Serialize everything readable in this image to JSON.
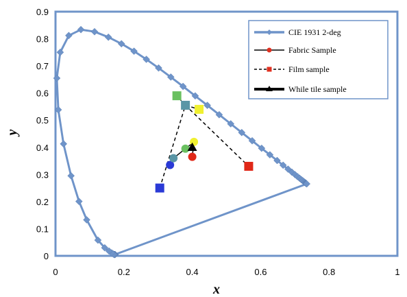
{
  "chart_data": {
    "type": "scatter",
    "xlabel": "x",
    "ylabel": "y",
    "xlim": [
      0,
      1
    ],
    "ylim": [
      0,
      0.9
    ],
    "x_ticks": [
      "0",
      "0.2",
      "0.4",
      "0.6",
      "0.8",
      "1"
    ],
    "y_ticks": [
      "0",
      "0.1",
      "0.2",
      "0.3",
      "0.4",
      "0.5",
      "0.6",
      "0.7",
      "0.8",
      "0.9"
    ],
    "grid": false,
    "legend_placement": "top-right",
    "legend": [
      {
        "label": "CIE 1931 2-deg",
        "style": "thick-line-diamond",
        "color": "#6f94c9"
      },
      {
        "label": "Fabric Sample",
        "style": "line-circle",
        "color": "#000000",
        "marker_color": "#e03020"
      },
      {
        "label": "Film sample",
        "style": "dashed-square",
        "color": "#000000",
        "marker_color": "#e03020"
      },
      {
        "label": "While tile sample",
        "style": "thick-line-triangle",
        "color": "#000000"
      }
    ],
    "series": [
      {
        "name": "CIE 1931 2-deg",
        "color": "#6f94c9",
        "closed": true,
        "points": [
          [
            0.1741,
            0.005
          ],
          [
            0.1738,
            0.0049
          ],
          [
            0.1733,
            0.0048
          ],
          [
            0.1726,
            0.0048
          ],
          [
            0.1714,
            0.0051
          ],
          [
            0.1689,
            0.0069
          ],
          [
            0.1644,
            0.0109
          ],
          [
            0.1566,
            0.0177
          ],
          [
            0.144,
            0.0297
          ],
          [
            0.1241,
            0.0578
          ],
          [
            0.0913,
            0.1327
          ],
          [
            0.0687,
            0.2007
          ],
          [
            0.0454,
            0.295
          ],
          [
            0.0235,
            0.4127
          ],
          [
            0.0082,
            0.5384
          ],
          [
            0.0039,
            0.6548
          ],
          [
            0.0139,
            0.7502
          ],
          [
            0.0389,
            0.812
          ],
          [
            0.0743,
            0.8338
          ],
          [
            0.1142,
            0.8262
          ],
          [
            0.1547,
            0.8059
          ],
          [
            0.1929,
            0.7816
          ],
          [
            0.2296,
            0.7543
          ],
          [
            0.2658,
            0.7243
          ],
          [
            0.3016,
            0.6923
          ],
          [
            0.3373,
            0.6589
          ],
          [
            0.3731,
            0.6245
          ],
          [
            0.4087,
            0.5896
          ],
          [
            0.4441,
            0.5547
          ],
          [
            0.4788,
            0.5202
          ],
          [
            0.5125,
            0.4866
          ],
          [
            0.5448,
            0.4544
          ],
          [
            0.5752,
            0.4242
          ],
          [
            0.6029,
            0.3965
          ],
          [
            0.627,
            0.3725
          ],
          [
            0.6482,
            0.3514
          ],
          [
            0.6658,
            0.334
          ],
          [
            0.6801,
            0.3197
          ],
          [
            0.6915,
            0.3083
          ],
          [
            0.7006,
            0.2993
          ],
          [
            0.7079,
            0.292
          ],
          [
            0.714,
            0.2859
          ],
          [
            0.719,
            0.2809
          ],
          [
            0.723,
            0.277
          ],
          [
            0.726,
            0.274
          ],
          [
            0.7283,
            0.2717
          ],
          [
            0.73,
            0.27
          ],
          [
            0.7311,
            0.2689
          ],
          [
            0.732,
            0.268
          ],
          [
            0.7327,
            0.2673
          ],
          [
            0.7334,
            0.2666
          ],
          [
            0.734,
            0.266
          ],
          [
            0.7344,
            0.2656
          ],
          [
            0.7346,
            0.2654
          ],
          [
            0.7347,
            0.2653
          ]
        ]
      },
      {
        "name": "Fabric Sample",
        "line": "solid",
        "marker": "circle",
        "points": [
          {
            "x": 0.335,
            "y": 0.335,
            "color": "#2a3ad6"
          },
          {
            "x": 0.345,
            "y": 0.36,
            "color": "#5a96a6"
          },
          {
            "x": 0.38,
            "y": 0.395,
            "color": "#6ac060"
          },
          {
            "x": 0.405,
            "y": 0.42,
            "color": "#f0f030"
          },
          {
            "x": 0.4,
            "y": 0.365,
            "color": "#e02818"
          }
        ]
      },
      {
        "name": "Film sample",
        "line": "dashed",
        "marker": "square",
        "points": [
          {
            "x": 0.305,
            "y": 0.25,
            "color": "#2a3ad6"
          },
          {
            "x": 0.38,
            "y": 0.555,
            "color": "#5a96a6"
          },
          {
            "x": 0.355,
            "y": 0.59,
            "color": "#6ac060"
          },
          {
            "x": 0.42,
            "y": 0.54,
            "color": "#f0f030"
          },
          {
            "x": 0.565,
            "y": 0.33,
            "color": "#e02818"
          }
        ],
        "segments": [
          [
            0,
            1
          ],
          [
            1,
            2
          ],
          [
            1,
            3
          ],
          [
            1,
            4
          ]
        ]
      },
      {
        "name": "While tile sample",
        "marker": "triangle",
        "points": [
          {
            "x": 0.4,
            "y": 0.4,
            "color": "#000000"
          }
        ]
      }
    ]
  }
}
